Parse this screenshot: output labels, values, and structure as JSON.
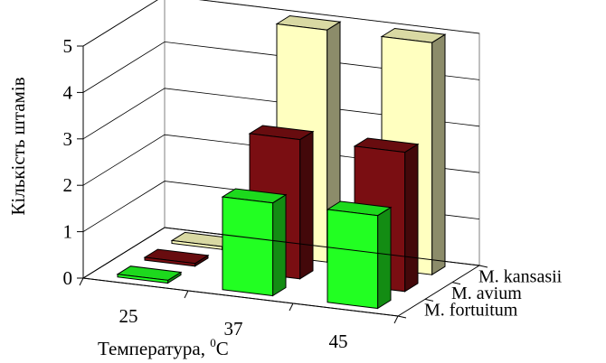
{
  "chart_data": {
    "type": "bar",
    "title": "",
    "xlabel": "Температура, ",
    "xlabel_sup": "0",
    "xlabel_unit": "С",
    "ylabel": "Кількість штамів",
    "x_categories": [
      "25",
      "37",
      "45"
    ],
    "y_ticks": [
      "0",
      "1",
      "2",
      "3",
      "4",
      "5"
    ],
    "ylim": [
      0,
      5
    ],
    "series": [
      {
        "name": "M. kansasii",
        "values": [
          0,
          5,
          5
        ],
        "color": "#FFFFC0"
      },
      {
        "name": "M. avium",
        "values": [
          0,
          3,
          3
        ],
        "color": "#7A0E12"
      },
      {
        "name": "M. fortuitum",
        "values": [
          0,
          2,
          2
        ],
        "color": "#22FF22"
      }
    ],
    "grid": true
  }
}
